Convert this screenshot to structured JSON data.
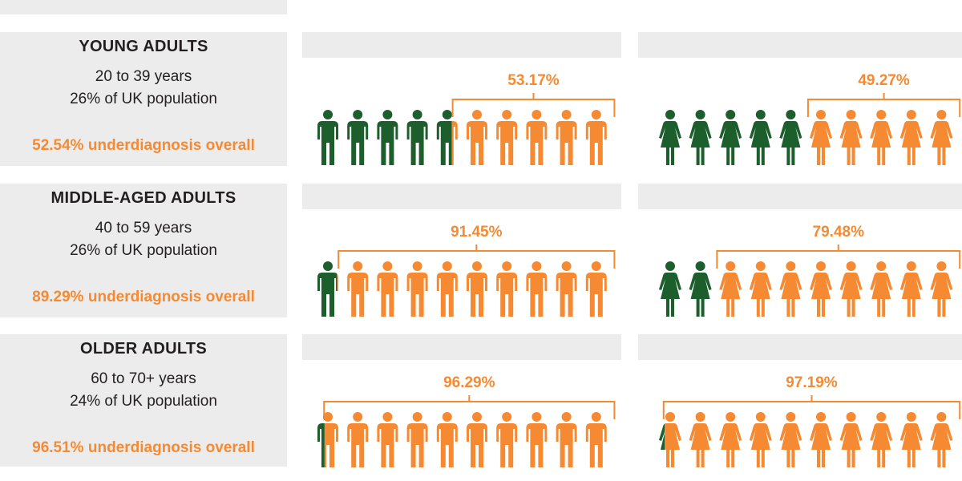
{
  "colors": {
    "diagnosed": "#1d5e2d",
    "undiagnosed": "#f58a33",
    "panel": "#ececec",
    "text": "#231f20"
  },
  "chart_data": {
    "type": "bar",
    "groups": [
      {
        "title": "YOUNG ADULTS",
        "age_range": "20 to 39 years",
        "population_share": "26% of UK population",
        "overall": "52.54% underdiagnosis overall",
        "male": {
          "value": 53.17,
          "label": "53.17%"
        },
        "female": {
          "value": 49.27,
          "label": "49.27%"
        }
      },
      {
        "title": "MIDDLE-AGED ADULTS",
        "age_range": "40 to 59 years",
        "population_share": "26% of UK population",
        "overall": "89.29% underdiagnosis overall",
        "male": {
          "value": 91.45,
          "label": "91.45%"
        },
        "female": {
          "value": 79.48,
          "label": "79.48%"
        }
      },
      {
        "title": "OLDER ADULTS",
        "age_range": "60 to 70+ years",
        "population_share": "24% of UK population",
        "overall": "96.51% underdiagnosis overall",
        "male": {
          "value": 96.29,
          "label": "96.29%"
        },
        "female": {
          "value": 97.19,
          "label": "97.19%"
        }
      }
    ]
  }
}
